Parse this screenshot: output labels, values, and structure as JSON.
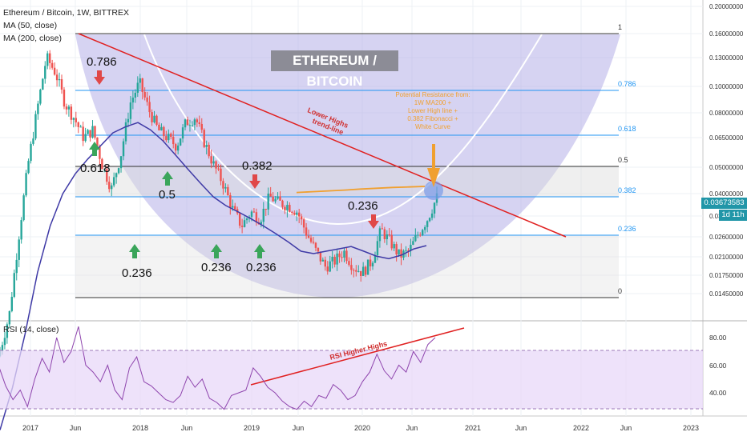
{
  "header": {
    "title": "Ethereum / Bitcoin, 1W, BITTREX",
    "ma50": "MA (50, close)",
    "ma200": "MA (200, close)",
    "rsi": "RSI (14, close)"
  },
  "banner": "ETHEREUM / BITCOIN",
  "price_tag": "0.03673583",
  "time_tag": "1d 11h",
  "colors": {
    "up": "#26a69a",
    "down": "#ef5350",
    "ma50": "#3f3aa6",
    "ma200": "#f0a030",
    "trend": "#e02020",
    "fib": "#2196f3",
    "bowl": "#b4aee8",
    "rsi": "#8e44ad",
    "annotation": "#f0a030"
  },
  "annotations": {
    "resistance": [
      "Potential Resistance from:",
      "1W MA200 +",
      "Lower High line +",
      "0.382 Fibonacci +",
      "White Curve"
    ],
    "trendline": [
      "Lower Highs",
      "trend-line"
    ],
    "rsi_trend": "RSI Higher Highs"
  },
  "chart_data": [
    {
      "type": "candlestick",
      "title": "Ethereum / Bitcoin, 1W, BITTREX",
      "x_ticks": [
        "2017",
        "Jun",
        "2018",
        "Jun",
        "2019",
        "Jun",
        "2020",
        "Jun",
        "2021",
        "Jun",
        "2022",
        "Jun",
        "2023"
      ],
      "y_ticks": [
        "0.20000000",
        "0.16000000",
        "0.13000000",
        "0.10000000",
        "0.08000000",
        "0.06500000",
        "0.05000000",
        "0.04000000",
        "0.03200000",
        "0.02600000",
        "0.02100000",
        "0.01750000",
        "0.01450000"
      ],
      "y_scale": "log",
      "last_price": 0.03673583,
      "fibonacci": [
        {
          "label": "1",
          "value": 0.16
        },
        {
          "label": "0.786",
          "value": 0.097
        },
        {
          "label": "0.618",
          "value": 0.068
        },
        {
          "label": "0.5",
          "value": 0.05
        },
        {
          "label": "0.382",
          "value": 0.0385
        },
        {
          "label": "0.236",
          "value": 0.027
        },
        {
          "label": "0",
          "value": 0.0165
        }
      ],
      "chart_labels": [
        "0.786",
        "0.618",
        "0.5",
        "0.382",
        "0.236",
        "0.236",
        "0.236",
        "0.236"
      ],
      "close_series": [
        0.0085,
        0.012,
        0.025,
        0.05,
        0.085,
        0.14,
        0.12,
        0.09,
        0.078,
        0.065,
        0.07,
        0.05,
        0.04,
        0.055,
        0.09,
        0.11,
        0.085,
        0.07,
        0.065,
        0.06,
        0.075,
        0.079,
        0.062,
        0.05,
        0.042,
        0.033,
        0.028,
        0.032,
        0.03,
        0.037,
        0.035,
        0.034,
        0.032,
        0.026,
        0.022,
        0.019,
        0.02,
        0.022,
        0.019,
        0.018,
        0.02,
        0.027,
        0.024,
        0.021,
        0.022,
        0.026,
        0.03,
        0.0367
      ],
      "ma50_series": [
        0.004,
        0.006,
        0.01,
        0.018,
        0.028,
        0.038,
        0.046,
        0.053,
        0.06,
        0.068,
        0.072,
        0.075,
        0.07,
        0.063,
        0.055,
        0.048,
        0.042,
        0.037,
        0.034,
        0.032,
        0.03,
        0.028,
        0.026,
        0.024,
        0.022,
        0.0215,
        0.022,
        0.0225,
        0.023,
        0.022,
        0.021,
        0.0205,
        0.0212,
        0.0225,
        0.0232
      ],
      "ma200_series": [
        0.0385,
        0.0388,
        0.0391,
        0.0394,
        0.0398,
        0.0401,
        0.0404,
        0.0406,
        0.0408
      ]
    },
    {
      "type": "line",
      "title": "RSI (14, close)",
      "y_ticks": [
        "80.00",
        "60.00",
        "40.00"
      ],
      "ylim": [
        20,
        95
      ],
      "band": [
        30,
        70
      ],
      "values": [
        60,
        45,
        35,
        42,
        30,
        50,
        65,
        55,
        80,
        62,
        70,
        88,
        60,
        55,
        48,
        60,
        42,
        35,
        58,
        66,
        48,
        45,
        40,
        35,
        33,
        38,
        52,
        44,
        50,
        36,
        33,
        28,
        38,
        40,
        42,
        58,
        52,
        44,
        40,
        34,
        30,
        28,
        34,
        30,
        38,
        36,
        46,
        42,
        35,
        38,
        48,
        55,
        68,
        56,
        50,
        60,
        55,
        70,
        62,
        75,
        80
      ]
    }
  ]
}
